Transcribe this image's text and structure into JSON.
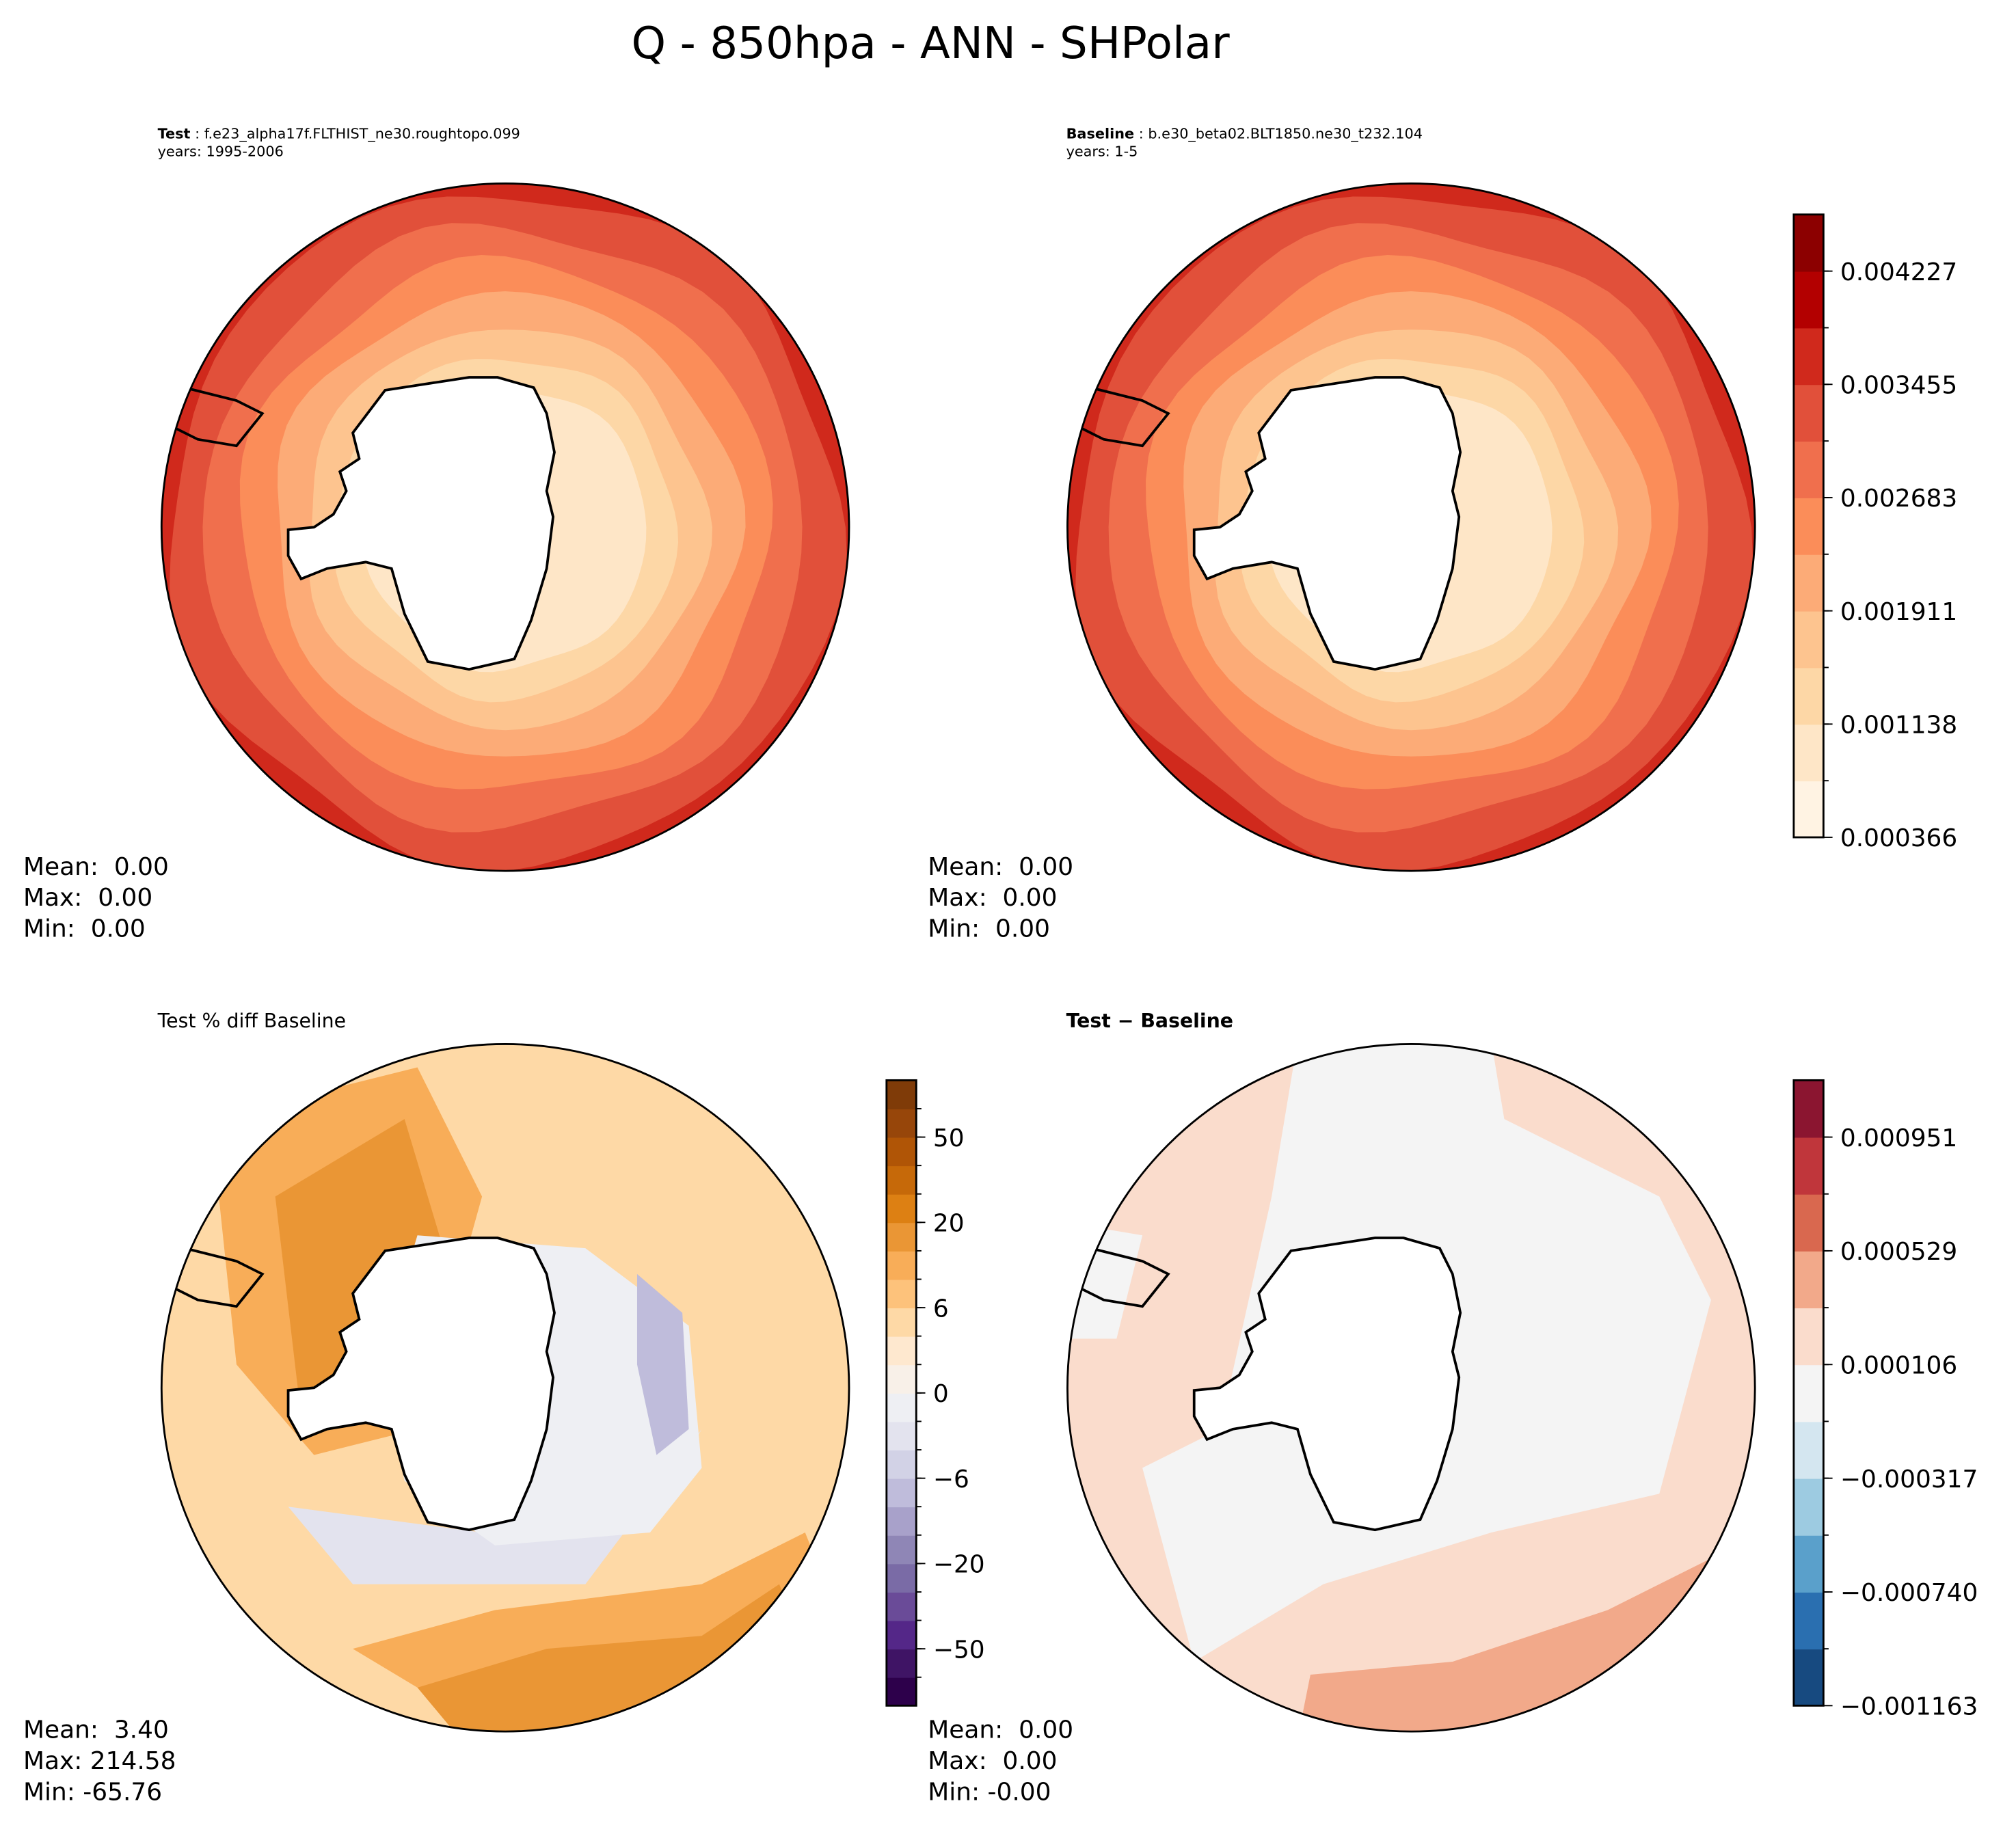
{
  "title": "Q - 850hpa - ANN - SHPolar",
  "panels": {
    "test": {
      "label": "Test",
      "name": "f.e23_alpha17f.FLTHIST_ne30.roughtopo.099",
      "years": "years: 1995-2006",
      "mean": "Mean:  0.00",
      "max": "Max:  0.00",
      "min": "Min:  0.00"
    },
    "baseline": {
      "label": "Baseline",
      "name": "b.e30_beta02.BLT1850.ne30_t232.104",
      "years": "years: 1-5",
      "mean": "Mean:  0.00",
      "max": "Max:  0.00",
      "min": "Min:  0.00"
    },
    "pctdiff": {
      "title": "Test % diff Baseline",
      "mean": "Mean:  3.40",
      "max": "Max: 214.58",
      "min": "Min: -65.76"
    },
    "diff": {
      "title": "Test − Baseline",
      "mean": "Mean:  0.00",
      "max": "Max:  0.00",
      "min": "Min: -0.00"
    }
  },
  "chart_data": [
    {
      "type": "heatmap",
      "title": "Test",
      "colorbar": {
        "ticks": [
          "0.004227",
          "0.003455",
          "0.002683",
          "0.001911",
          "0.001138",
          "0.000366"
        ],
        "range": [
          0.000366,
          0.004613
        ],
        "colors": [
          "#fff3e3",
          "#fee6c7",
          "#fdd7a6",
          "#fdc48f",
          "#fcab77",
          "#fb8d59",
          "#f06f4d",
          "#e1503a",
          "#d0291c",
          "#b30000",
          "#8c0000"
        ]
      }
    },
    {
      "type": "heatmap",
      "title": "Baseline",
      "colorbar": "shared"
    },
    {
      "type": "heatmap",
      "title": "Test % diff Baseline",
      "colorbar": {
        "ticks": [
          "50",
          "20",
          "6",
          "0",
          "−6",
          "−20",
          "−50"
        ],
        "colors": [
          "#2d004b",
          "#3f1465",
          "#542788",
          "#6a4b98",
          "#7a6ba6",
          "#8f86b6",
          "#a8a1ca",
          "#bfbcdb",
          "#d2d2e6",
          "#e3e3ee",
          "#eeeff3",
          "#f8f0e8",
          "#fee8cf",
          "#fed9a6",
          "#fdc27b",
          "#f8ad58",
          "#ea9635",
          "#dd8013",
          "#c66909",
          "#b05506",
          "#97460a",
          "#7f3b08"
        ]
      }
    },
    {
      "type": "heatmap",
      "title": "Test − Baseline",
      "colorbar": {
        "ticks": [
          "0.000951",
          "0.000529",
          "0.000106",
          "−0.000317",
          "−0.000740",
          "−0.001163"
        ],
        "colors": [
          "#174a80",
          "#2a6fb0",
          "#5aa0cb",
          "#9dcbe1",
          "#d4e6f0",
          "#f4f4f4",
          "#fadccc",
          "#f2a98a",
          "#d9684f",
          "#c0363b",
          "#8b1530"
        ]
      }
    }
  ]
}
